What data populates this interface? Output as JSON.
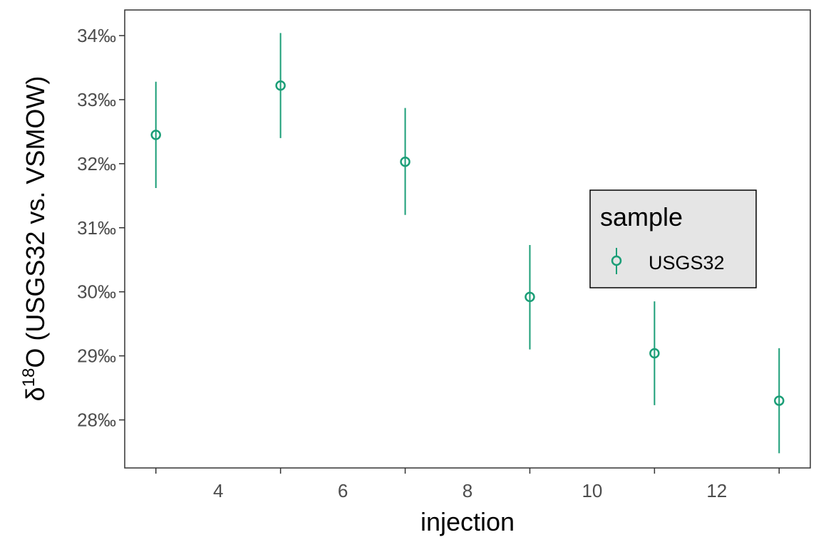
{
  "chart_data": {
    "type": "scatter",
    "title": "",
    "xlabel": "injection",
    "ylabel_prefix": "δ",
    "ylabel_superscript": "18",
    "ylabel_rest": "O (USGS32 vs. VSMOW)",
    "xlim": [
      2.5,
      13.5
    ],
    "ylim": [
      27.25,
      34.4
    ],
    "x_ticks": [
      4,
      6,
      8,
      10,
      12
    ],
    "x_tick_labels": [
      "4",
      "6",
      "8",
      "10",
      "12"
    ],
    "x_minor_ticks": [
      3,
      5,
      7,
      9,
      11,
      13
    ],
    "y_ticks": [
      28,
      29,
      30,
      31,
      32,
      33,
      34
    ],
    "y_tick_labels": [
      "28‰",
      "29‰",
      "30‰",
      "31‰",
      "32‰",
      "33‰",
      "34‰"
    ],
    "grid": false,
    "legend": {
      "title": "sample",
      "position": "right-center"
    },
    "series": [
      {
        "name": "USGS32",
        "color": "#1b9e77",
        "marker": "open-circle",
        "x": [
          3,
          5,
          7,
          9,
          11,
          13
        ],
        "y": [
          32.45,
          33.22,
          32.03,
          29.92,
          29.04,
          28.3
        ],
        "err_low": [
          31.62,
          32.4,
          31.2,
          29.1,
          28.23,
          27.48
        ],
        "err_high": [
          33.28,
          34.04,
          32.87,
          30.73,
          29.85,
          29.12
        ]
      }
    ]
  }
}
